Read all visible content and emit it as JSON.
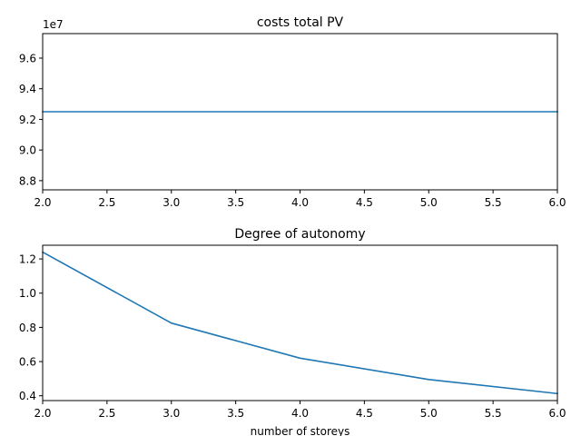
{
  "chart_data": [
    {
      "type": "line",
      "title": "costs total PV",
      "xlabel": "",
      "ylabel": "",
      "x": [
        2,
        3,
        4,
        5,
        6
      ],
      "series": [
        {
          "values": [
            92500000,
            92500000,
            92500000,
            92500000,
            92500000
          ],
          "color": "#1f77b4"
        }
      ],
      "xlim": [
        2,
        6
      ],
      "ylim": [
        87400000,
        97600000
      ],
      "xticks": [
        2.0,
        2.5,
        3.0,
        3.5,
        4.0,
        4.5,
        5.0,
        5.5,
        6.0
      ],
      "xtick_labels": [
        "2.0",
        "2.5",
        "3.0",
        "3.5",
        "4.0",
        "4.5",
        "5.0",
        "5.5",
        "6.0"
      ],
      "yticks": [
        88000000,
        90000000,
        92000000,
        94000000,
        96000000
      ],
      "ytick_labels": [
        "8.8",
        "9.0",
        "9.2",
        "9.4",
        "9.6"
      ],
      "y_offset_label": "1e7",
      "grid": false
    },
    {
      "type": "line",
      "title": "Degree of autonomy",
      "xlabel": "number of storeys",
      "ylabel": "",
      "x": [
        2,
        3,
        4,
        5,
        6
      ],
      "series": [
        {
          "values": [
            1.24,
            0.825,
            0.62,
            0.495,
            0.413
          ],
          "color": "#1f77b4"
        }
      ],
      "xlim": [
        2,
        6
      ],
      "ylim": [
        0.372,
        1.28
      ],
      "xticks": [
        2.0,
        2.5,
        3.0,
        3.5,
        4.0,
        4.5,
        5.0,
        5.5,
        6.0
      ],
      "xtick_labels": [
        "2.0",
        "2.5",
        "3.0",
        "3.5",
        "4.0",
        "4.5",
        "5.0",
        "5.5",
        "6.0"
      ],
      "yticks": [
        0.4,
        0.6,
        0.8,
        1.0,
        1.2
      ],
      "ytick_labels": [
        "0.4",
        "0.6",
        "0.8",
        "1.0",
        "1.2"
      ],
      "grid": false
    }
  ]
}
